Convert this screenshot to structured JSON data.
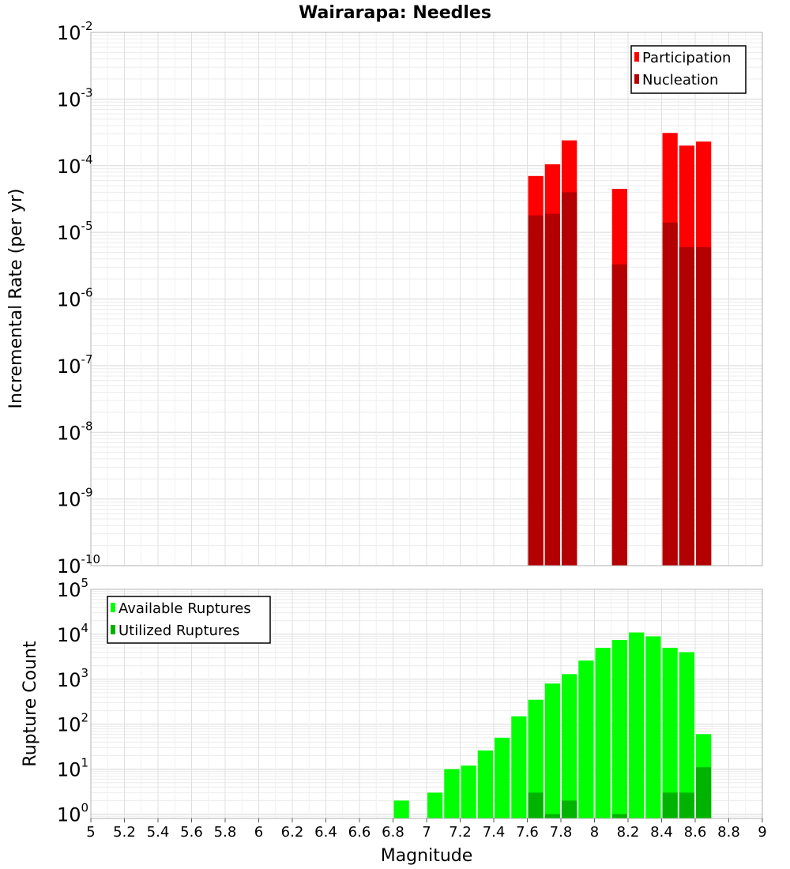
{
  "chart_data": [
    {
      "type": "bar",
      "title": "Wairarapa: Needles",
      "xlabel": "",
      "ylabel": "Incremental Rate (per yr)",
      "yscale": "log",
      "xlim": [
        5,
        9
      ],
      "ylim": [
        1e-10,
        0.01
      ],
      "ytick_exponents": [
        -2,
        -3,
        -4,
        -5,
        -6,
        -7,
        -8,
        -9,
        -10
      ],
      "grid": true,
      "legend_position": "top-right",
      "bar_width": 0.1,
      "series": [
        {
          "name": "Participation",
          "color": "#ff0000",
          "x": [
            7.65,
            7.75,
            7.85,
            8.15,
            8.45,
            8.55,
            8.65
          ],
          "values": [
            7e-05,
            0.000105,
            0.00024,
            4.5e-05,
            0.00031,
            0.0002,
            0.00023
          ]
        },
        {
          "name": "Nucleation",
          "color": "#b30000",
          "x": [
            7.65,
            7.75,
            7.85,
            8.15,
            8.45,
            8.55,
            8.65
          ],
          "values": [
            1.8e-05,
            1.9e-05,
            4e-05,
            3.3e-06,
            1.4e-05,
            6e-06,
            6e-06
          ]
        }
      ]
    },
    {
      "type": "bar",
      "xlabel": "Magnitude",
      "ylabel": "Rupture Count",
      "yscale": "log",
      "xlim": [
        5,
        9
      ],
      "ylim": [
        0.8,
        100000
      ],
      "ytick_exponents": [
        0,
        1,
        2,
        3,
        4,
        5
      ],
      "xticks": [
        "5",
        "5.2",
        "5.4",
        "5.6",
        "5.8",
        "6",
        "6.2",
        "6.4",
        "6.6",
        "6.8",
        "7",
        "7.2",
        "7.4",
        "7.6",
        "7.8",
        "8",
        "8.2",
        "8.4",
        "8.6",
        "8.8",
        "9"
      ],
      "grid": true,
      "legend_position": "top-left",
      "bar_width": 0.1,
      "series": [
        {
          "name": "Available Ruptures",
          "color": "#00ff00",
          "x": [
            6.85,
            7.05,
            7.15,
            7.25,
            7.35,
            7.45,
            7.55,
            7.65,
            7.75,
            7.85,
            7.95,
            8.05,
            8.15,
            8.25,
            8.35,
            8.45,
            8.55,
            8.65
          ],
          "values": [
            2,
            3,
            10,
            12,
            26,
            50,
            150,
            350,
            800,
            1300,
            2600,
            5000,
            7500,
            11000,
            9000,
            5000,
            4000,
            60
          ]
        },
        {
          "name": "Utilized Ruptures",
          "color": "#00b300",
          "x": [
            7.65,
            7.75,
            7.85,
            8.15,
            8.45,
            8.55,
            8.65
          ],
          "values": [
            3,
            1,
            2,
            1,
            3,
            3,
            11
          ]
        }
      ]
    }
  ]
}
